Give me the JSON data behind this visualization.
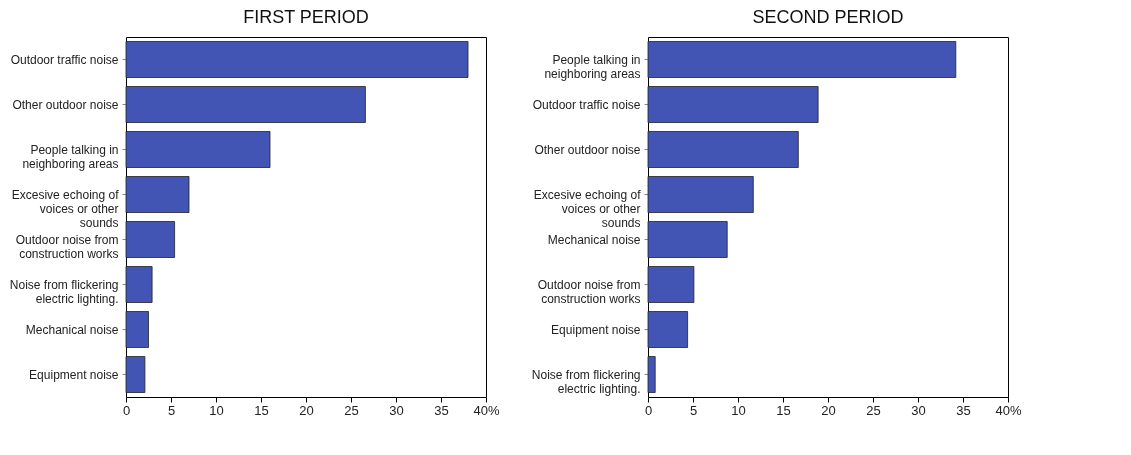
{
  "chart_data": [
    {
      "type": "bar",
      "orientation": "horizontal",
      "title": "FIRST PERIOD",
      "categories": [
        "Outdoor traffic noise",
        "Other outdoor noise",
        "People talking in neighboring areas",
        "Excesive echoing of voices or other sounds",
        "Outdoor noise from construction works",
        "Noise from flickering electric lighting.",
        "Mechanical noise",
        "Equipment noise"
      ],
      "values": [
        38.0,
        26.6,
        16.0,
        7.0,
        5.4,
        2.9,
        2.5,
        2.1
      ],
      "color": "#4255b5",
      "xlim": [
        0,
        40
      ],
      "xticks": [
        0,
        5,
        10,
        15,
        20,
        25,
        30,
        35,
        {
          "value": 40,
          "label": "40%"
        }
      ]
    },
    {
      "type": "bar",
      "orientation": "horizontal",
      "title": "SECOND PERIOD",
      "categories": [
        "People talking in neighboring areas",
        "Outdoor traffic noise",
        "Other outdoor noise",
        "Excesive echoing of voices or other sounds",
        "Mechanical noise",
        "Outdoor noise from construction works",
        "Equipment noise",
        "Noise from flickering electric lighting."
      ],
      "values": [
        34.2,
        18.9,
        16.7,
        11.7,
        8.8,
        5.1,
        4.4,
        0.8
      ],
      "color": "#4255b5",
      "xlim": [
        0,
        40
      ],
      "xticks": [
        0,
        5,
        10,
        15,
        20,
        25,
        30,
        35,
        {
          "value": 40,
          "label": "40%"
        }
      ]
    }
  ]
}
